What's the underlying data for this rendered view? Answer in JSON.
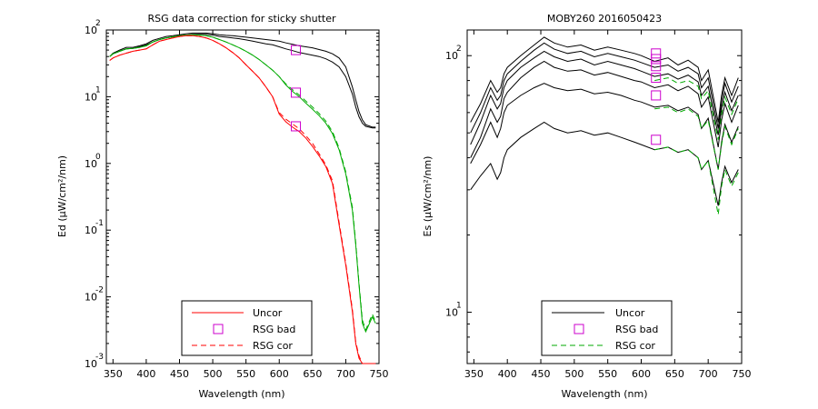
{
  "chart_data": [
    {
      "type": "line",
      "title": "RSG data correction for sticky shutter",
      "xlabel": "Wavelength (nm)",
      "ylabel": "Ed (μW/cm²/nm)",
      "xlim": [
        340,
        750
      ],
      "ylog": true,
      "ylim_log10": [
        -3,
        2
      ],
      "xticks": [
        350,
        400,
        450,
        500,
        550,
        600,
        650,
        700,
        750
      ],
      "yticks": [
        {
          "exp": -3,
          "base": "10",
          "sup": "-3"
        },
        {
          "exp": -2,
          "base": "10",
          "sup": "-2"
        },
        {
          "exp": -1,
          "base": "10",
          "sup": "-1"
        },
        {
          "exp": 0,
          "base": "10",
          "sup": "0"
        },
        {
          "exp": 1,
          "base": "10",
          "sup": "1"
        },
        {
          "exp": 2,
          "base": "10",
          "sup": "2"
        }
      ],
      "legend_position": "bottom-center",
      "legend": [
        {
          "label": "Uncor",
          "style": "line",
          "color": "#ff0000"
        },
        {
          "label": "RSG bad",
          "style": "square",
          "color": "#cc00cc"
        },
        {
          "label": "RSG cor",
          "style": "dashed",
          "color": "#ff0000"
        }
      ],
      "x": [
        345,
        350,
        360,
        370,
        380,
        390,
        400,
        410,
        420,
        430,
        440,
        450,
        460,
        470,
        480,
        490,
        500,
        510,
        520,
        530,
        540,
        550,
        560,
        570,
        580,
        590,
        600,
        610,
        620,
        630,
        640,
        650,
        660,
        670,
        680,
        690,
        700,
        710,
        715,
        720,
        725,
        730,
        740,
        745
      ],
      "series": [
        {
          "name": "",
          "color": "#000000",
          "style": "solid",
          "values": [
            40,
            45,
            50,
            55,
            55,
            58,
            62,
            70,
            75,
            80,
            82,
            85,
            88,
            90,
            90,
            90,
            88,
            85,
            83,
            82,
            80,
            78,
            76,
            74,
            72,
            70,
            68,
            64,
            61,
            58,
            56,
            54,
            51,
            48,
            44,
            38,
            28,
            14,
            9,
            6,
            4.5,
            3.8,
            3.5,
            3.5
          ]
        },
        {
          "name": "",
          "color": "#000000",
          "style": "solid",
          "values": [
            40,
            44,
            48,
            52,
            53,
            56,
            60,
            66,
            72,
            76,
            79,
            82,
            84,
            86,
            86,
            86,
            84,
            80,
            78,
            76,
            74,
            71,
            68,
            65,
            62,
            60,
            56,
            52,
            49,
            46,
            44,
            42,
            40,
            37,
            33,
            28,
            20,
            11,
            7,
            5,
            4,
            3.6,
            3.4,
            3.4
          ]
        },
        {
          "name": "",
          "color": "#00aa00",
          "style": "solid",
          "values": [
            40,
            44,
            48,
            52,
            53,
            55,
            58,
            66,
            72,
            76,
            79,
            82,
            84,
            85,
            84,
            82,
            78,
            72,
            66,
            60,
            54,
            48,
            42,
            36,
            30,
            25,
            20,
            15,
            12,
            10,
            8,
            6.5,
            5.2,
            4,
            2.8,
            1.6,
            0.7,
            0.2,
            0.06,
            0.015,
            0.004,
            0.003,
            0.005,
            0.004
          ]
        },
        {
          "name": "",
          "color": "#00aa00",
          "style": "dashed",
          "values": [
            40,
            44,
            48,
            52,
            53,
            55,
            58,
            66,
            72,
            76,
            79,
            82,
            84,
            85,
            84,
            82,
            78,
            72,
            66,
            60,
            54,
            48,
            42,
            36,
            30,
            25,
            20,
            15.5,
            12.7,
            10.6,
            8.6,
            7,
            5.6,
            4.3,
            3,
            1.7,
            0.75,
            0.22,
            0.065,
            0.016,
            0.0045,
            0.0032,
            0.0055,
            0.0042
          ]
        },
        {
          "name": "Uncor",
          "color": "#ff0000",
          "style": "solid",
          "values": [
            35,
            38,
            42,
            45,
            48,
            50,
            52,
            60,
            68,
            72,
            76,
            80,
            82,
            82,
            80,
            76,
            70,
            62,
            54,
            46,
            38,
            30,
            24,
            19,
            14,
            10,
            5.5,
            4.2,
            3.5,
            3,
            2.4,
            1.8,
            1.3,
            0.9,
            0.5,
            0.12,
            0.03,
            0.006,
            0.002,
            0.0012,
            0.001,
            0.001,
            0.001,
            0.001
          ]
        },
        {
          "name": "RSG cor",
          "color": "#ff0000",
          "style": "dashed",
          "values": [
            35,
            38,
            42,
            45,
            48,
            50,
            52,
            60,
            68,
            72,
            76,
            80,
            82,
            82,
            80,
            76,
            70,
            62,
            54,
            46,
            38,
            30,
            24,
            19,
            14,
            10,
            5.8,
            4.6,
            3.9,
            3.3,
            2.6,
            2,
            1.4,
            0.95,
            0.55,
            0.13,
            0.032,
            0.0065,
            0.0021,
            0.0013,
            0.001,
            0.001,
            0.001,
            0.001
          ]
        }
      ],
      "markers": [
        {
          "x": 625,
          "y": 50
        },
        {
          "x": 625,
          "y": 11.5
        },
        {
          "x": 625,
          "y": 3.6
        }
      ]
    },
    {
      "type": "line",
      "title": "MOBY260  2016050423",
      "xlabel": "Wavelength (nm)",
      "ylabel": "Es (μW/cm²/nm)",
      "xlim": [
        340,
        750
      ],
      "ylog": true,
      "ylim_log10": [
        0.8,
        2.1
      ],
      "xticks": [
        350,
        400,
        450,
        500,
        550,
        600,
        650,
        700,
        750
      ],
      "yticks": [
        {
          "exp": 1,
          "base": "10",
          "sup": "1"
        },
        {
          "exp": 2,
          "base": "10",
          "sup": "2"
        }
      ],
      "legend_position": "bottom-center",
      "legend": [
        {
          "label": "Uncor",
          "style": "line",
          "color": "#000000"
        },
        {
          "label": "RSG bad",
          "style": "square",
          "color": "#cc00cc"
        },
        {
          "label": "RSG cor",
          "style": "dashed",
          "color": "#00aa00"
        }
      ],
      "x": [
        345,
        360,
        375,
        385,
        390,
        395,
        400,
        420,
        440,
        455,
        470,
        490,
        510,
        530,
        550,
        570,
        590,
        600,
        620,
        640,
        655,
        670,
        685,
        690,
        700,
        715,
        720,
        725,
        735,
        745
      ],
      "series": [
        {
          "name": "",
          "color": "#000000",
          "style": "solid",
          "values": [
            55,
            65,
            80,
            72,
            75,
            85,
            90,
            100,
            110,
            118,
            112,
            108,
            110,
            105,
            108,
            105,
            102,
            100,
            95,
            98,
            92,
            96,
            90,
            80,
            88,
            55,
            70,
            82,
            70,
            82
          ]
        },
        {
          "name": "",
          "color": "#000000",
          "style": "solid",
          "values": [
            50,
            60,
            75,
            67,
            70,
            80,
            85,
            95,
            105,
            112,
            106,
            102,
            104,
            99,
            102,
            99,
            96,
            94,
            90,
            92,
            87,
            90,
            85,
            75,
            82,
            52,
            66,
            78,
            66,
            76
          ]
        },
        {
          "name": "",
          "color": "#000000",
          "style": "solid",
          "values": [
            45,
            55,
            70,
            62,
            65,
            75,
            80,
            90,
            98,
            104,
            99,
            95,
            97,
            92,
            95,
            92,
            89,
            87,
            83,
            85,
            81,
            84,
            79,
            70,
            76,
            49,
            62,
            72,
            61,
            70
          ]
        },
        {
          "name": "",
          "color": "#000000",
          "style": "solid",
          "values": [
            40,
            48,
            62,
            55,
            58,
            68,
            72,
            82,
            90,
            95,
            90,
            87,
            88,
            84,
            86,
            83,
            80,
            79,
            75,
            77,
            73,
            76,
            71,
            63,
            69,
            44,
            56,
            65,
            55,
            64
          ]
        },
        {
          "name": "",
          "color": "#000000",
          "style": "solid",
          "values": [
            38,
            45,
            55,
            48,
            52,
            60,
            64,
            70,
            75,
            78,
            75,
            73,
            74,
            71,
            72,
            70,
            67,
            66,
            63,
            64,
            61,
            63,
            59,
            52,
            57,
            36,
            46,
            54,
            46,
            53
          ]
        },
        {
          "name": "",
          "color": "#000000",
          "style": "solid",
          "values": [
            30,
            34,
            38,
            33,
            35,
            40,
            43,
            48,
            52,
            55,
            52,
            50,
            51,
            49,
            50,
            48,
            46,
            45,
            43,
            44,
            42,
            43,
            40,
            36,
            39,
            26,
            32,
            37,
            32,
            36
          ]
        },
        {
          "name": "RSG cor",
          "color": "#00aa00",
          "style": "dashed",
          "values": [
            null,
            null,
            null,
            null,
            null,
            null,
            null,
            null,
            null,
            null,
            null,
            null,
            null,
            null,
            null,
            null,
            null,
            null,
            80,
            82,
            78,
            80,
            76,
            68,
            73,
            47,
            59,
            69,
            59,
            68
          ]
        },
        {
          "name": "",
          "color": "#00aa00",
          "style": "dashed",
          "values": [
            null,
            null,
            null,
            null,
            null,
            null,
            null,
            null,
            null,
            null,
            null,
            null,
            null,
            null,
            null,
            null,
            null,
            null,
            62,
            63,
            60,
            62,
            58,
            52,
            56,
            36,
            45,
            53,
            45,
            52
          ]
        },
        {
          "name": "",
          "color": "#00aa00",
          "style": "dashed",
          "values": [
            null,
            null,
            null,
            null,
            null,
            null,
            null,
            null,
            null,
            null,
            null,
            null,
            null,
            null,
            null,
            null,
            null,
            null,
            43,
            44,
            42,
            43,
            40,
            36,
            39,
            24,
            31,
            36,
            31,
            35
          ]
        }
      ],
      "markers": [
        {
          "x": 622,
          "y": 102
        },
        {
          "x": 622,
          "y": 97
        },
        {
          "x": 622,
          "y": 91
        },
        {
          "x": 622,
          "y": 82
        },
        {
          "x": 622,
          "y": 70
        },
        {
          "x": 622,
          "y": 47
        }
      ]
    }
  ]
}
